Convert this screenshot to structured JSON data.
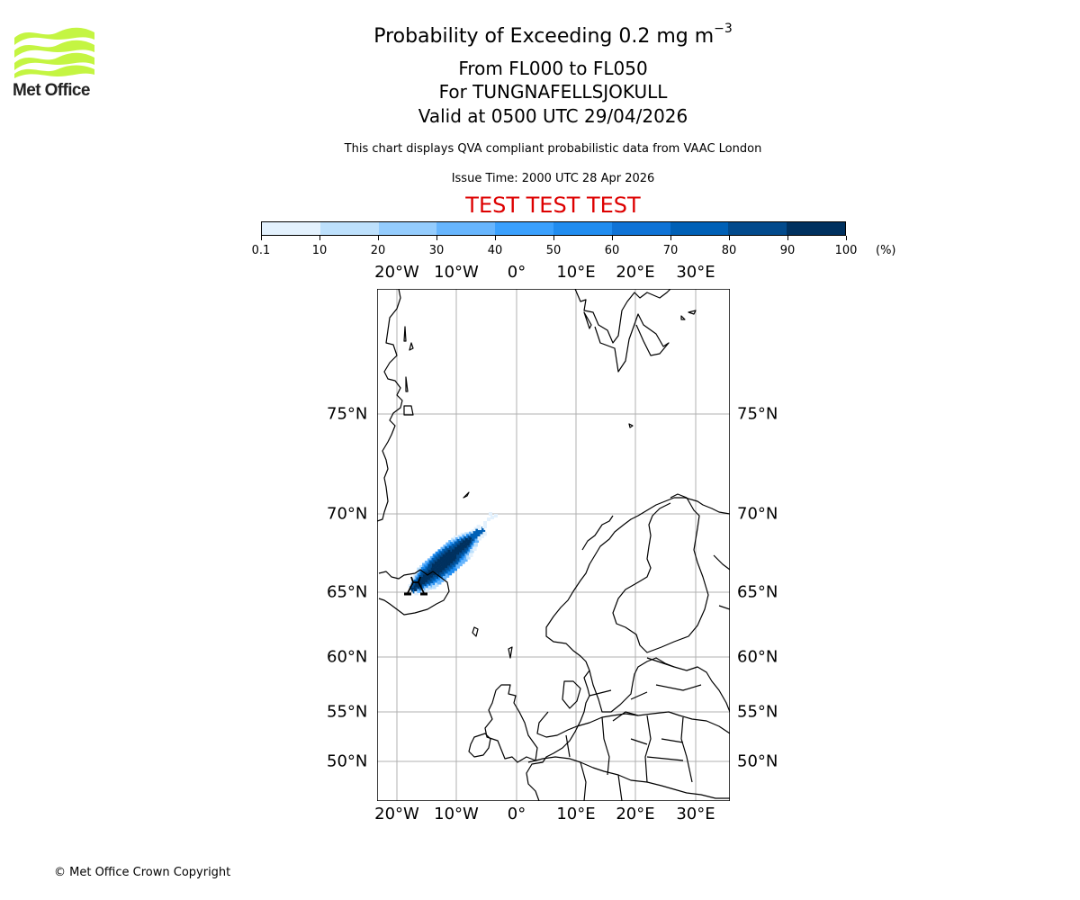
{
  "logo": {
    "name": "Met Office",
    "color": "#c4f542",
    "icon": "met-office-waves-logo"
  },
  "header": {
    "title_prefix": "Probability of Exceeding 0.2 mg m",
    "title_superscript": "−3",
    "level_range": "From FL000 to FL050",
    "volcano": "For TUNGNAFELLSJOKULL",
    "valid_time": "Valid at 0500 UTC 29/04/2026",
    "note": "This chart displays QVA compliant probabilistic data from VAAC London",
    "issue_time": "Issue Time: 2000 UTC 28 Apr 2026",
    "test_banner": "TEST TEST TEST",
    "test_color": "#dd0000"
  },
  "colorbar": {
    "ticks": [
      "0.1",
      "10",
      "20",
      "30",
      "40",
      "50",
      "60",
      "70",
      "80",
      "90",
      "100"
    ],
    "unit": "(%)",
    "colors": [
      "#e3f1fd",
      "#bde0fc",
      "#94ccfd",
      "#67b5fd",
      "#3aa0fd",
      "#208cef",
      "#0f73d6",
      "#0060b6",
      "#024a8c",
      "#00315f"
    ]
  },
  "map": {
    "lon_labels": [
      "20°W",
      "10°W",
      "0°",
      "10°E",
      "20°E",
      "30°E"
    ],
    "lat_labels": [
      "75°N",
      "70°N",
      "65°N",
      "60°N",
      "55°N",
      "50°N"
    ],
    "volcano_symbol": "volcano-icon",
    "gridline_color": "#b0b0b0"
  },
  "footer": {
    "copyright": "© Met Office Crown Copyright"
  },
  "chart_data": {
    "type": "heatmap",
    "title": "Probability of Exceeding 0.2 mg m−3 — From FL000 to FL050 — For TUNGNAFELLSJOKULL — Valid at 0500 UTC 29/04/2026",
    "subtitle": "This chart displays QVA compliant probabilistic data from VAAC London; Issue Time: 2000 UTC 28 Apr 2026",
    "colorbar_label": "(%)",
    "colorbar_bounds": [
      0.1,
      10,
      20,
      30,
      40,
      50,
      60,
      70,
      80,
      90,
      100
    ],
    "x_ticks": [
      "20°W",
      "10°W",
      "0°",
      "10°E",
      "20°E",
      "30°E"
    ],
    "y_ticks": [
      "75°N",
      "70°N",
      "65°N",
      "60°N",
      "55°N",
      "50°N"
    ],
    "extent": {
      "lon": [
        -23.3,
        35.5
      ],
      "lat": [
        47,
        80
      ]
    },
    "source": {
      "name": "TUNGNAFELLSJOKULL",
      "lon": -17.9,
      "lat": 64.7
    },
    "plume": {
      "description": "Ash plume extending NE from central Iceland toward ~68.5°N 6°W, core probability 90-100%, fringe 0.1-30%",
      "axis": [
        [
          -17.9,
          64.7
        ],
        [
          -12,
          66.5
        ],
        [
          -6.5,
          68.6
        ]
      ],
      "max_probability_band": "90-100",
      "faint_extension_to": [
        -3.5,
        70.0
      ]
    },
    "grid": true
  }
}
